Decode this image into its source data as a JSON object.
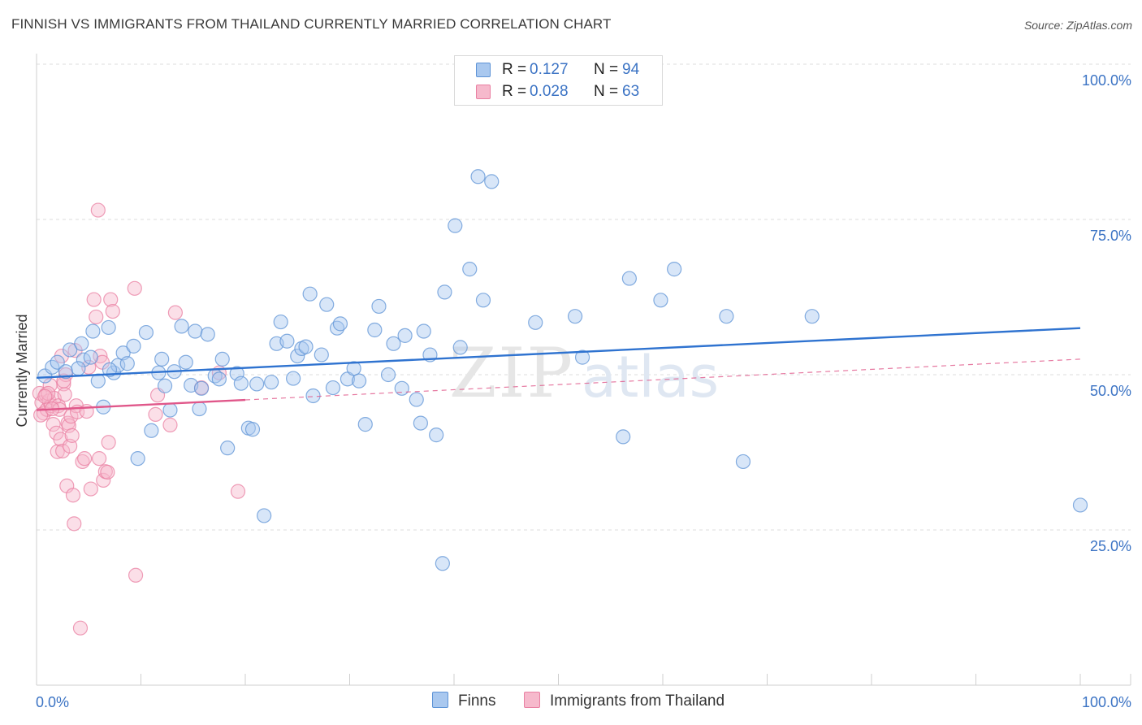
{
  "header": {
    "title": "FINNISH VS IMMIGRANTS FROM THAILAND CURRENTLY MARRIED CORRELATION CHART",
    "source": "Source: ZipAtlas.com"
  },
  "legend": {
    "rows": [
      {
        "r_label": "R =",
        "r_value": "0.127",
        "n_label": "N =",
        "n_value": "94"
      },
      {
        "r_label": "R =",
        "r_value": "0.028",
        "n_label": "N =",
        "n_value": "63"
      }
    ]
  },
  "colors": {
    "finns_fill": "#a9c8ef",
    "finns_stroke": "#5d93d6",
    "finns_line": "#2f73d0",
    "thai_fill": "#f6b9cc",
    "thai_stroke": "#e97fa2",
    "thai_line": "#e0578a",
    "grid": "#dddddd",
    "tick_label": "#3b73c4"
  },
  "chart_data": {
    "type": "scatter",
    "ylabel": "Currently Married",
    "xlabel": "",
    "xlim": [
      0,
      100
    ],
    "ylim": [
      0,
      105
    ],
    "x_tick_labels": {
      "left": "0.0%",
      "right": "100.0%"
    },
    "y_ticks": [
      {
        "value": 25,
        "label": "25.0%"
      },
      {
        "value": 50,
        "label": "50.0%"
      },
      {
        "value": 75,
        "label": "75.0%"
      },
      {
        "value": 100,
        "label": "100.0%"
      }
    ],
    "watermark": {
      "zip": "ZIP",
      "atlas": "atlas"
    },
    "series": [
      {
        "name": "Finns",
        "trend": {
          "x": [
            0,
            100
          ],
          "y": [
            49.5,
            57.5
          ],
          "x_solid_end": 100
        },
        "points": [
          [
            0.8,
            49.8
          ],
          [
            1.5,
            51.2
          ],
          [
            2,
            52
          ],
          [
            2.8,
            50.5
          ],
          [
            3.2,
            54
          ],
          [
            4.3,
            55
          ],
          [
            4.5,
            52.4
          ],
          [
            5.4,
            57
          ],
          [
            5.9,
            49
          ],
          [
            6.4,
            44.8
          ],
          [
            6.9,
            57.6
          ],
          [
            7.4,
            50.3
          ],
          [
            7.8,
            51.5
          ],
          [
            8.3,
            53.5
          ],
          [
            8.7,
            51.8
          ],
          [
            9.3,
            54.6
          ],
          [
            9.7,
            36.5
          ],
          [
            10.5,
            56.8
          ],
          [
            11,
            41
          ],
          [
            11.7,
            50.3
          ],
          [
            12.3,
            48.2
          ],
          [
            12.8,
            44.3
          ],
          [
            13.2,
            50.5
          ],
          [
            13.9,
            57.8
          ],
          [
            14.3,
            52
          ],
          [
            14.8,
            48.3
          ],
          [
            15.2,
            57
          ],
          [
            15.6,
            44.5
          ],
          [
            15.8,
            47.8
          ],
          [
            16.4,
            56.5
          ],
          [
            17.1,
            49.8
          ],
          [
            17.5,
            49.3
          ],
          [
            17.8,
            52.5
          ],
          [
            18.3,
            38.2
          ],
          [
            19.2,
            50.2
          ],
          [
            19.6,
            48.6
          ],
          [
            20.3,
            41.4
          ],
          [
            20.7,
            41.2
          ],
          [
            21.1,
            48.5
          ],
          [
            21.8,
            27.3
          ],
          [
            22.5,
            48.8
          ],
          [
            23,
            55
          ],
          [
            23.4,
            58.5
          ],
          [
            24,
            55.4
          ],
          [
            24.6,
            49.4
          ],
          [
            25,
            53
          ],
          [
            25.4,
            54.2
          ],
          [
            25.8,
            54.5
          ],
          [
            26.2,
            63
          ],
          [
            26.5,
            46.6
          ],
          [
            27.3,
            53.2
          ],
          [
            27.8,
            61.3
          ],
          [
            28.4,
            47.9
          ],
          [
            28.8,
            57.5
          ],
          [
            29.1,
            58.2
          ],
          [
            29.8,
            49.3
          ],
          [
            30.4,
            51
          ],
          [
            30.9,
            49
          ],
          [
            31.5,
            42
          ],
          [
            32.4,
            57.2
          ],
          [
            32.8,
            61
          ],
          [
            33.7,
            50
          ],
          [
            34.2,
            55
          ],
          [
            35,
            47.8
          ],
          [
            35.3,
            56.3
          ],
          [
            36.4,
            46
          ],
          [
            36.8,
            42.2
          ],
          [
            37.1,
            57
          ],
          [
            37.7,
            53.2
          ],
          [
            38.3,
            40.3
          ],
          [
            38.9,
            19.6
          ],
          [
            39.1,
            63.3
          ],
          [
            40.1,
            74
          ],
          [
            40.6,
            54.4
          ],
          [
            41.5,
            67
          ],
          [
            42.3,
            81.9
          ],
          [
            42.8,
            62
          ],
          [
            43.6,
            81.1
          ],
          [
            47.8,
            58.4
          ],
          [
            51.6,
            59.4
          ],
          [
            52.3,
            52.8
          ],
          [
            56.2,
            40
          ],
          [
            56.8,
            65.5
          ],
          [
            59.8,
            62
          ],
          [
            61.1,
            67
          ],
          [
            66.1,
            59.4
          ],
          [
            67.7,
            36
          ],
          [
            74.3,
            59.4
          ],
          [
            100,
            29
          ],
          [
            5.2,
            52.8
          ],
          [
            4,
            51
          ],
          [
            7,
            50.8
          ],
          [
            12,
            52.5
          ]
        ]
      },
      {
        "name": "Immigrants from Thailand",
        "trend": {
          "x": [
            0,
            100
          ],
          "y": [
            44.3,
            52.5
          ],
          "x_solid_end": 20
        },
        "points": [
          [
            0.3,
            47
          ],
          [
            0.5,
            45.5
          ],
          [
            0.7,
            43.8
          ],
          [
            0.9,
            46.8
          ],
          [
            1,
            44.4
          ],
          [
            1.2,
            45.8
          ],
          [
            1.3,
            48.3
          ],
          [
            1.4,
            45
          ],
          [
            1.6,
            42
          ],
          [
            1.7,
            46.2
          ],
          [
            1.9,
            40.6
          ],
          [
            2,
            37.6
          ],
          [
            2.1,
            45
          ],
          [
            2.2,
            44.4
          ],
          [
            2.3,
            39.6
          ],
          [
            2.4,
            53
          ],
          [
            2.5,
            37.7
          ],
          [
            2.6,
            48.5
          ],
          [
            2.7,
            46.8
          ],
          [
            2.8,
            50
          ],
          [
            2.9,
            32.1
          ],
          [
            3,
            42.2
          ],
          [
            3.1,
            41.8
          ],
          [
            3.2,
            38.5
          ],
          [
            3.3,
            43.3
          ],
          [
            3.4,
            40.2
          ],
          [
            3.5,
            30.6
          ],
          [
            3.6,
            26
          ],
          [
            3.7,
            53.9
          ],
          [
            3.8,
            45
          ],
          [
            3.9,
            44
          ],
          [
            4.2,
            9.2
          ],
          [
            4.4,
            36
          ],
          [
            4.6,
            36.5
          ],
          [
            4.8,
            44.1
          ],
          [
            5,
            51.2
          ],
          [
            5.2,
            31.6
          ],
          [
            5.5,
            62.1
          ],
          [
            5.7,
            59.3
          ],
          [
            5.9,
            76.5
          ],
          [
            6,
            36.5
          ],
          [
            6.1,
            53
          ],
          [
            6.3,
            52
          ],
          [
            6.4,
            33
          ],
          [
            6.6,
            34.4
          ],
          [
            6.8,
            34.3
          ],
          [
            6.9,
            39.1
          ],
          [
            7.1,
            62.1
          ],
          [
            7.3,
            60.2
          ],
          [
            9.4,
            63.9
          ],
          [
            9.5,
            17.7
          ],
          [
            11.4,
            43.6
          ],
          [
            11.6,
            46.7
          ],
          [
            12.8,
            41.9
          ],
          [
            13.3,
            60
          ],
          [
            15.8,
            47.9
          ],
          [
            17.5,
            50.3
          ],
          [
            19.3,
            31.2
          ],
          [
            1.1,
            47
          ],
          [
            0.4,
            43.5
          ],
          [
            0.8,
            46.5
          ],
          [
            1.5,
            44.5
          ],
          [
            2.6,
            49
          ]
        ]
      }
    ]
  },
  "bottom_legend": {
    "items": [
      {
        "label": "Finns"
      },
      {
        "label": "Immigrants from Thailand"
      }
    ]
  }
}
